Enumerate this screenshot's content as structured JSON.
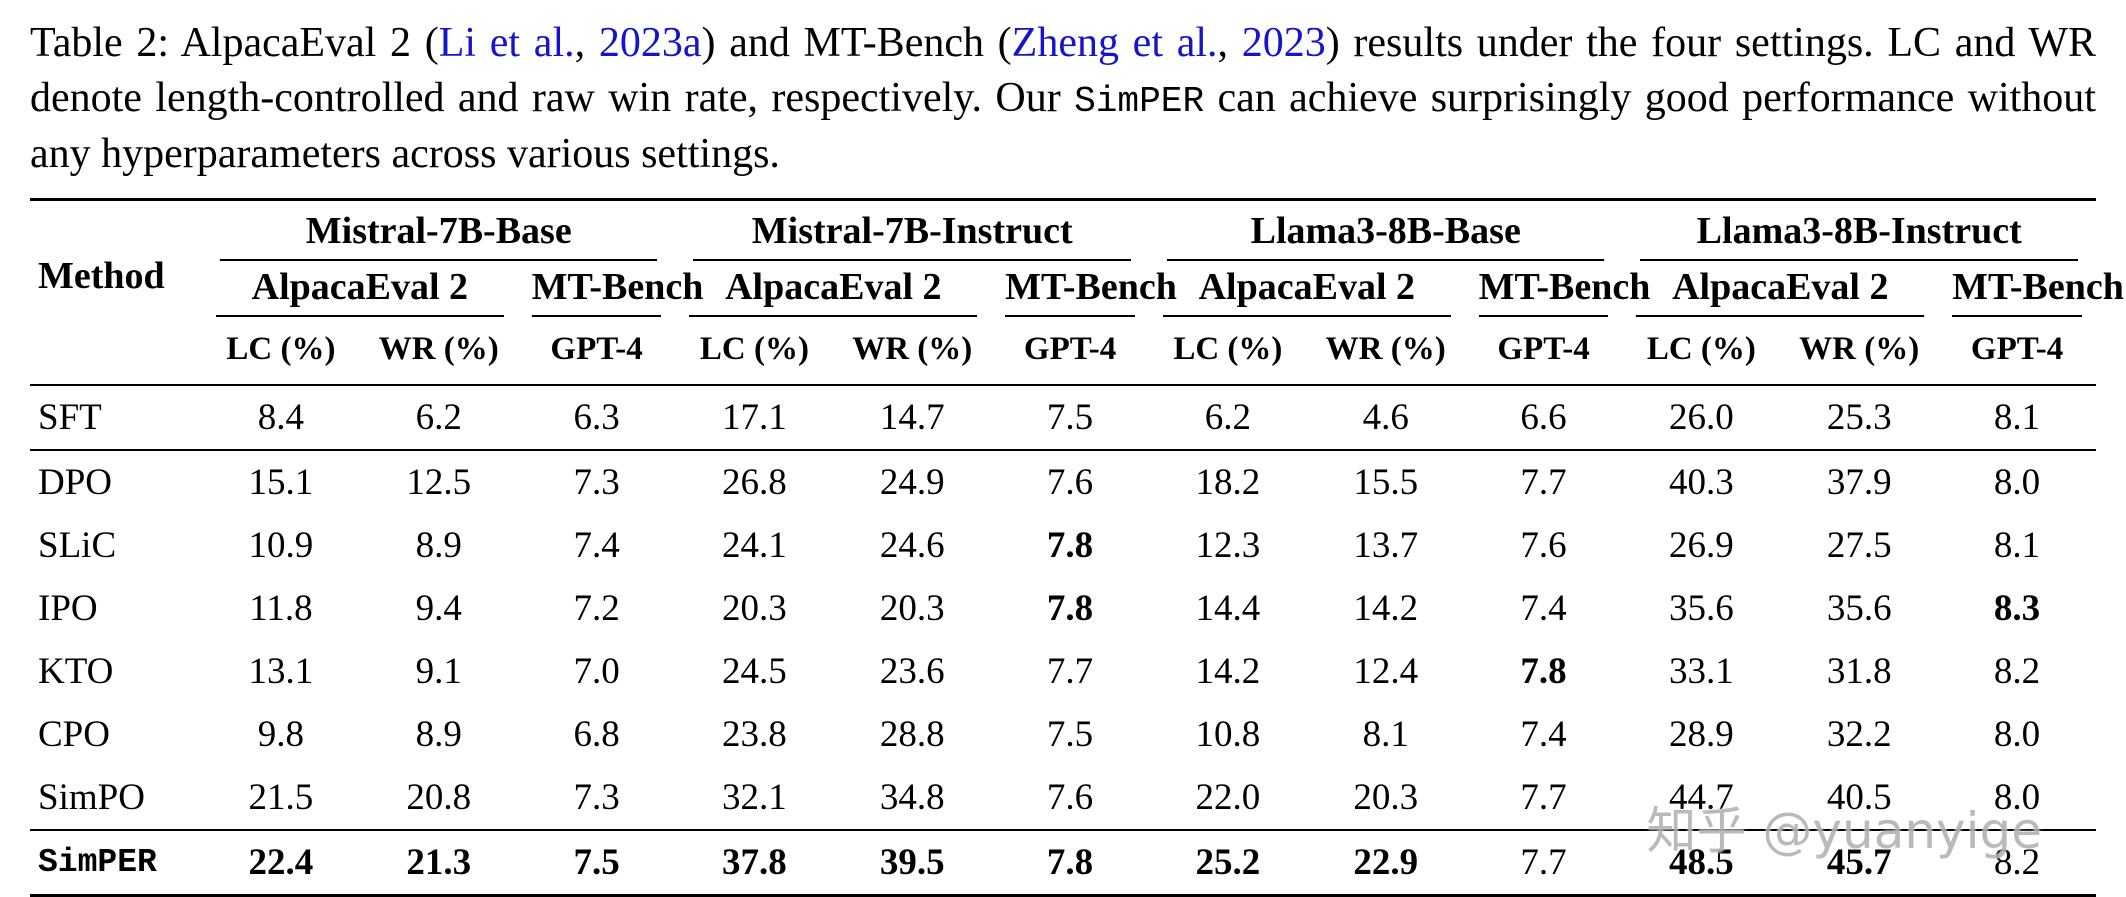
{
  "colors": {
    "text": "#000000",
    "link": "#1414cc",
    "rule": "#000000",
    "watermark": "#b3b3b3"
  },
  "caption": {
    "parts": [
      {
        "t": "Table 2: AlpacaEval 2 (",
        "s": "text"
      },
      {
        "t": "Li et al.",
        "s": "link"
      },
      {
        "t": ", ",
        "s": "text"
      },
      {
        "t": "2023a",
        "s": "link"
      },
      {
        "t": ") and MT-Bench (",
        "s": "text"
      },
      {
        "t": "Zheng et al.",
        "s": "link"
      },
      {
        "t": ", ",
        "s": "text"
      },
      {
        "t": "2023",
        "s": "link"
      },
      {
        "t": ") results under the four settings.  LC and WR denote length-controlled and raw win rate, respectively.  Our ",
        "s": "text"
      },
      {
        "t": "SimPER",
        "s": "code"
      },
      {
        "t": " can achieve surprisingly good performance without any hyperparameters across various settings.",
        "s": "text"
      }
    ]
  },
  "table": {
    "method_header": "Method",
    "groups": [
      {
        "name": "Mistral-7B-Base"
      },
      {
        "name": "Mistral-7B-Instruct"
      },
      {
        "name": "Llama3-8B-Base"
      },
      {
        "name": "Llama3-8B-Instruct"
      }
    ],
    "subgroups": [
      "AlpacaEval 2",
      "MT-Bench"
    ],
    "metrics": [
      "LC (%)",
      "WR (%)",
      "GPT-4"
    ],
    "rows": [
      {
        "method": "SFT",
        "mono": false,
        "rule_below": true,
        "values": [
          "8.4",
          "6.2",
          "6.3",
          "17.1",
          "14.7",
          "7.5",
          "6.2",
          "4.6",
          "6.6",
          "26.0",
          "25.3",
          "8.1"
        ],
        "bold": []
      },
      {
        "method": "DPO",
        "mono": false,
        "rule_below": false,
        "values": [
          "15.1",
          "12.5",
          "7.3",
          "26.8",
          "24.9",
          "7.6",
          "18.2",
          "15.5",
          "7.7",
          "40.3",
          "37.9",
          "8.0"
        ],
        "bold": []
      },
      {
        "method": "SLiC",
        "mono": false,
        "rule_below": false,
        "values": [
          "10.9",
          "8.9",
          "7.4",
          "24.1",
          "24.6",
          "7.8",
          "12.3",
          "13.7",
          "7.6",
          "26.9",
          "27.5",
          "8.1"
        ],
        "bold": [
          5
        ]
      },
      {
        "method": "IPO",
        "mono": false,
        "rule_below": false,
        "values": [
          "11.8",
          "9.4",
          "7.2",
          "20.3",
          "20.3",
          "7.8",
          "14.4",
          "14.2",
          "7.4",
          "35.6",
          "35.6",
          "8.3"
        ],
        "bold": [
          5,
          11
        ]
      },
      {
        "method": "KTO",
        "mono": false,
        "rule_below": false,
        "values": [
          "13.1",
          "9.1",
          "7.0",
          "24.5",
          "23.6",
          "7.7",
          "14.2",
          "12.4",
          "7.8",
          "33.1",
          "31.8",
          "8.2"
        ],
        "bold": [
          8
        ]
      },
      {
        "method": "CPO",
        "mono": false,
        "rule_below": false,
        "values": [
          "9.8",
          "8.9",
          "6.8",
          "23.8",
          "28.8",
          "7.5",
          "10.8",
          "8.1",
          "7.4",
          "28.9",
          "32.2",
          "8.0"
        ],
        "bold": []
      },
      {
        "method": "SimPO",
        "mono": false,
        "rule_below": true,
        "values": [
          "21.5",
          "20.8",
          "7.3",
          "32.1",
          "34.8",
          "7.6",
          "22.0",
          "20.3",
          "7.7",
          "44.7",
          "40.5",
          "8.0"
        ],
        "bold": []
      },
      {
        "method": "SimPER",
        "mono": true,
        "rule_below": false,
        "values": [
          "22.4",
          "21.3",
          "7.5",
          "37.8",
          "39.5",
          "7.8",
          "25.2",
          "22.9",
          "7.7",
          "48.5",
          "45.7",
          "8.2"
        ],
        "bold": [
          0,
          1,
          2,
          3,
          4,
          5,
          6,
          7,
          9,
          10
        ]
      }
    ]
  },
  "watermark": "知乎 @yuanyige"
}
